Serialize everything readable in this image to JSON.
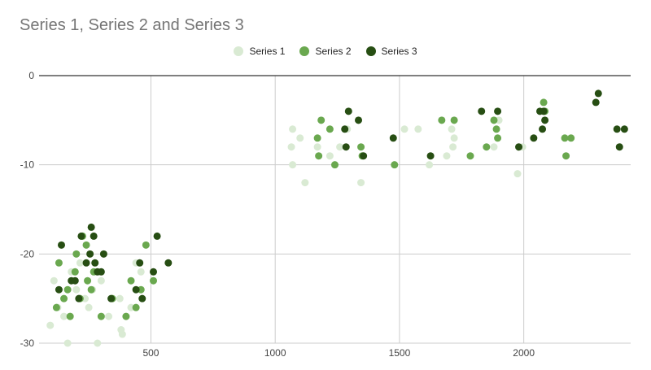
{
  "chart_data": {
    "type": "scatter",
    "title": "Series 1, Series 2 and Series 3",
    "xlabel": "",
    "ylabel": "",
    "xlim": [
      50,
      2430
    ],
    "ylim": [
      -30,
      0
    ],
    "x_ticks": [
      "500",
      "1000",
      "1500",
      "2000"
    ],
    "y_ticks": [
      "0",
      "-10",
      "-20",
      "-30"
    ],
    "grid": true,
    "legend_position": "top",
    "series": [
      {
        "name": "Series 1",
        "color": "#d9ead3",
        "points": [
          [
            95,
            -28
          ],
          [
            110,
            -23
          ],
          [
            125,
            -26
          ],
          [
            150,
            -27
          ],
          [
            165,
            -30
          ],
          [
            180,
            -22
          ],
          [
            200,
            -24
          ],
          [
            215,
            -21
          ],
          [
            235,
            -25
          ],
          [
            250,
            -26
          ],
          [
            265,
            -24
          ],
          [
            285,
            -30
          ],
          [
            300,
            -23
          ],
          [
            330,
            -27
          ],
          [
            375,
            -25
          ],
          [
            380,
            -28.5
          ],
          [
            385,
            -29
          ],
          [
            420,
            -26
          ],
          [
            440,
            -21
          ],
          [
            460,
            -22
          ],
          [
            1065,
            -8
          ],
          [
            1070,
            -6
          ],
          [
            1070,
            -10
          ],
          [
            1100,
            -7
          ],
          [
            1120,
            -12
          ],
          [
            1170,
            -8
          ],
          [
            1220,
            -9
          ],
          [
            1260,
            -8
          ],
          [
            1290,
            -6
          ],
          [
            1345,
            -12
          ],
          [
            1520,
            -6
          ],
          [
            1575,
            -6
          ],
          [
            1620,
            -10
          ],
          [
            1690,
            -9
          ],
          [
            1710,
            -6
          ],
          [
            1715,
            -8
          ],
          [
            1720,
            -7
          ],
          [
            1880,
            -8
          ],
          [
            1900,
            -5
          ],
          [
            1975,
            -11
          ],
          [
            1995,
            -8
          ]
        ]
      },
      {
        "name": "Series 2",
        "color": "#6aa84f",
        "points": [
          [
            120,
            -26
          ],
          [
            130,
            -21
          ],
          [
            150,
            -25
          ],
          [
            165,
            -24
          ],
          [
            175,
            -27
          ],
          [
            195,
            -22
          ],
          [
            200,
            -20
          ],
          [
            215,
            -25
          ],
          [
            225,
            -18
          ],
          [
            240,
            -19
          ],
          [
            245,
            -23
          ],
          [
            260,
            -24
          ],
          [
            270,
            -22
          ],
          [
            300,
            -27
          ],
          [
            345,
            -25
          ],
          [
            400,
            -27
          ],
          [
            420,
            -23
          ],
          [
            440,
            -26
          ],
          [
            460,
            -24
          ],
          [
            480,
            -19
          ],
          [
            510,
            -23
          ],
          [
            1170,
            -7
          ],
          [
            1175,
            -9
          ],
          [
            1185,
            -5
          ],
          [
            1220,
            -6
          ],
          [
            1240,
            -10
          ],
          [
            1345,
            -8
          ],
          [
            1350,
            -9
          ],
          [
            1480,
            -10
          ],
          [
            1670,
            -5
          ],
          [
            1720,
            -5
          ],
          [
            1785,
            -9
          ],
          [
            1850,
            -8
          ],
          [
            1880,
            -5
          ],
          [
            1890,
            -6
          ],
          [
            1895,
            -7
          ],
          [
            2080,
            -3
          ],
          [
            2085,
            -4
          ],
          [
            2165,
            -7
          ],
          [
            2170,
            -9
          ],
          [
            2190,
            -7
          ]
        ]
      },
      {
        "name": "Series 3",
        "color": "#274e13",
        "points": [
          [
            130,
            -24
          ],
          [
            140,
            -19
          ],
          [
            180,
            -23
          ],
          [
            195,
            -23
          ],
          [
            210,
            -25
          ],
          [
            220,
            -18
          ],
          [
            240,
            -21
          ],
          [
            255,
            -20
          ],
          [
            260,
            -17
          ],
          [
            270,
            -18
          ],
          [
            275,
            -21
          ],
          [
            285,
            -22
          ],
          [
            300,
            -22
          ],
          [
            310,
            -20
          ],
          [
            340,
            -25
          ],
          [
            440,
            -24
          ],
          [
            455,
            -21
          ],
          [
            465,
            -25
          ],
          [
            510,
            -22
          ],
          [
            525,
            -18
          ],
          [
            570,
            -21
          ],
          [
            1280,
            -6
          ],
          [
            1285,
            -8
          ],
          [
            1295,
            -4
          ],
          [
            1335,
            -5
          ],
          [
            1355,
            -9
          ],
          [
            1475,
            -7
          ],
          [
            1625,
            -9
          ],
          [
            1830,
            -4
          ],
          [
            1895,
            -4
          ],
          [
            1980,
            -8
          ],
          [
            2040,
            -7
          ],
          [
            2065,
            -4
          ],
          [
            2075,
            -6
          ],
          [
            2080,
            -4
          ],
          [
            2085,
            -5
          ],
          [
            2290,
            -3
          ],
          [
            2300,
            -2
          ],
          [
            2375,
            -6
          ],
          [
            2385,
            -8
          ],
          [
            2405,
            -6
          ]
        ]
      }
    ]
  }
}
